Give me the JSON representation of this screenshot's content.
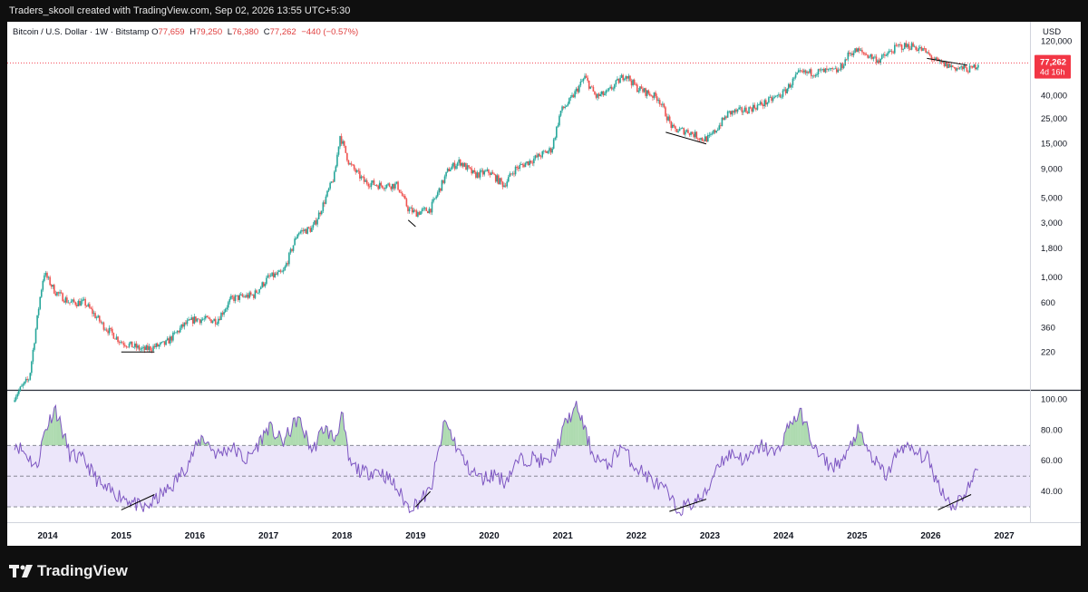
{
  "header": {
    "credit": "Traders_skooll created with TradingView.com, Sep 02, 2026 13:55 UTC+5:30"
  },
  "legend": {
    "symbol": "Bitcoin / U.S. Dollar · 1W · Bitstamp",
    "o_label": "O",
    "o_value": "77,659",
    "h_label": "H",
    "h_value": "79,250",
    "l_label": "L",
    "l_value": "76,380",
    "c_label": "C",
    "c_value": "77,262",
    "change": "−440 (−0.57%)"
  },
  "footer": {
    "brand": "TradingView"
  },
  "colors": {
    "up": "#26a69a",
    "down": "#ef5350",
    "rsi_line": "#7e57c2",
    "rsi_band": "#ece6fa",
    "rsi_ob_fill": "#4caf50",
    "price_line": "#f23645",
    "trendline": "#000000"
  },
  "chart_data": [
    {
      "type": "line",
      "title": "Bitcoin / U.S. Dollar · 1W · Bitstamp",
      "y_unit": "USD",
      "scale": "log",
      "x_label_ticks": [
        "2014",
        "2015",
        "2016",
        "2017",
        "2018",
        "2019",
        "2020",
        "2021",
        "2022",
        "2023",
        "2024",
        "2025",
        "2026",
        "2027"
      ],
      "y_ticks": [
        "120,000",
        "40,000",
        "25,000",
        "15,000",
        "9,000",
        "5,000",
        "3,000",
        "1,800",
        "1,000",
        "600",
        "360",
        "220"
      ],
      "y_tick_values": [
        120000,
        40000,
        25000,
        15000,
        9000,
        5000,
        3000,
        1800,
        1000,
        600,
        360,
        220
      ],
      "ylim": [
        110,
        160000
      ],
      "last_price": "77,262",
      "countdown": "4d 16h",
      "series": [
        {
          "x": [
            2013.55,
            2013.75,
            2013.9,
            2013.95,
            2014.1,
            2014.3,
            2014.5,
            2014.75,
            2015.0,
            2015.3,
            2015.6,
            2015.85,
            2016.0,
            2016.3,
            2016.5,
            2016.8,
            2017.0,
            2017.2,
            2017.4,
            2017.6,
            2017.75,
            2017.9,
            2017.97,
            2018.1,
            2018.3,
            2018.5,
            2018.75,
            2018.9,
            2019.0,
            2019.2,
            2019.45,
            2019.6,
            2019.8,
            2020.0,
            2020.2,
            2020.35,
            2020.6,
            2020.85,
            2020.97,
            2021.1,
            2021.3,
            2021.45,
            2021.6,
            2021.85,
            2022.0,
            2022.3,
            2022.5,
            2022.7,
            2022.9,
            2023.0,
            2023.25,
            2023.5,
            2023.75,
            2024.0,
            2024.2,
            2024.5,
            2024.75,
            2024.9,
            2025.0,
            2025.3,
            2025.55,
            2025.75,
            2025.9,
            2026.1,
            2026.35,
            2026.55,
            2026.65
          ],
          "y": [
            90,
            130,
            700,
            1100,
            750,
            600,
            600,
            380,
            270,
            230,
            260,
            380,
            430,
            420,
            650,
            700,
            1000,
            1100,
            2500,
            2700,
            4500,
            8000,
            18000,
            10000,
            7000,
            6500,
            6500,
            4000,
            3700,
            4000,
            9000,
            10500,
            8000,
            8500,
            6500,
            9000,
            11000,
            13500,
            29000,
            36000,
            58000,
            39000,
            42000,
            62000,
            47000,
            38000,
            20000,
            19500,
            16500,
            17000,
            28000,
            30000,
            34500,
            42000,
            62000,
            65000,
            66000,
            95000,
            100000,
            82000,
            108000,
            110000,
            100000,
            78000,
            70000,
            68000,
            77262
          ]
        }
      ]
    },
    {
      "type": "line",
      "title": "RSI",
      "y_ticks": [
        "100.00",
        "80.00",
        "60.00",
        "40.00"
      ],
      "y_tick_values": [
        100,
        80,
        60,
        40
      ],
      "bands": [
        30,
        50,
        70
      ],
      "ylim": [
        20,
        105
      ],
      "series": [
        {
          "x": [
            2013.55,
            2013.75,
            2013.85,
            2013.95,
            2014.1,
            2014.3,
            2014.5,
            2014.75,
            2014.95,
            2015.1,
            2015.3,
            2015.5,
            2015.7,
            2015.9,
            2016.1,
            2016.3,
            2016.5,
            2016.7,
            2016.85,
            2017.0,
            2017.2,
            2017.4,
            2017.6,
            2017.75,
            2017.9,
            2018.0,
            2018.1,
            2018.3,
            2018.5,
            2018.7,
            2018.9,
            2019.0,
            2019.2,
            2019.4,
            2019.55,
            2019.7,
            2019.9,
            2020.1,
            2020.2,
            2020.4,
            2020.6,
            2020.8,
            2020.95,
            2021.05,
            2021.2,
            2021.4,
            2021.6,
            2021.8,
            2021.95,
            2022.2,
            2022.4,
            2022.55,
            2022.75,
            2022.95,
            2023.1,
            2023.3,
            2023.5,
            2023.7,
            2023.9,
            2024.1,
            2024.25,
            2024.45,
            2024.65,
            2024.85,
            2025.0,
            2025.2,
            2025.4,
            2025.6,
            2025.8,
            2025.95,
            2026.1,
            2026.3,
            2026.45,
            2026.6,
            2026.65
          ],
          "y": [
            72,
            62,
            55,
            78,
            95,
            64,
            60,
            42,
            38,
            35,
            28,
            36,
            44,
            58,
            76,
            64,
            69,
            60,
            70,
            82,
            72,
            88,
            66,
            82,
            74,
            90,
            58,
            52,
            54,
            45,
            30,
            32,
            40,
            86,
            70,
            56,
            48,
            52,
            46,
            60,
            62,
            58,
            72,
            86,
            95,
            65,
            56,
            70,
            58,
            48,
            40,
            28,
            32,
            38,
            58,
            65,
            60,
            70,
            64,
            86,
            90,
            65,
            56,
            62,
            80,
            62,
            50,
            70,
            65,
            62,
            45,
            30,
            38,
            50,
            58
          ]
        }
      ]
    }
  ]
}
